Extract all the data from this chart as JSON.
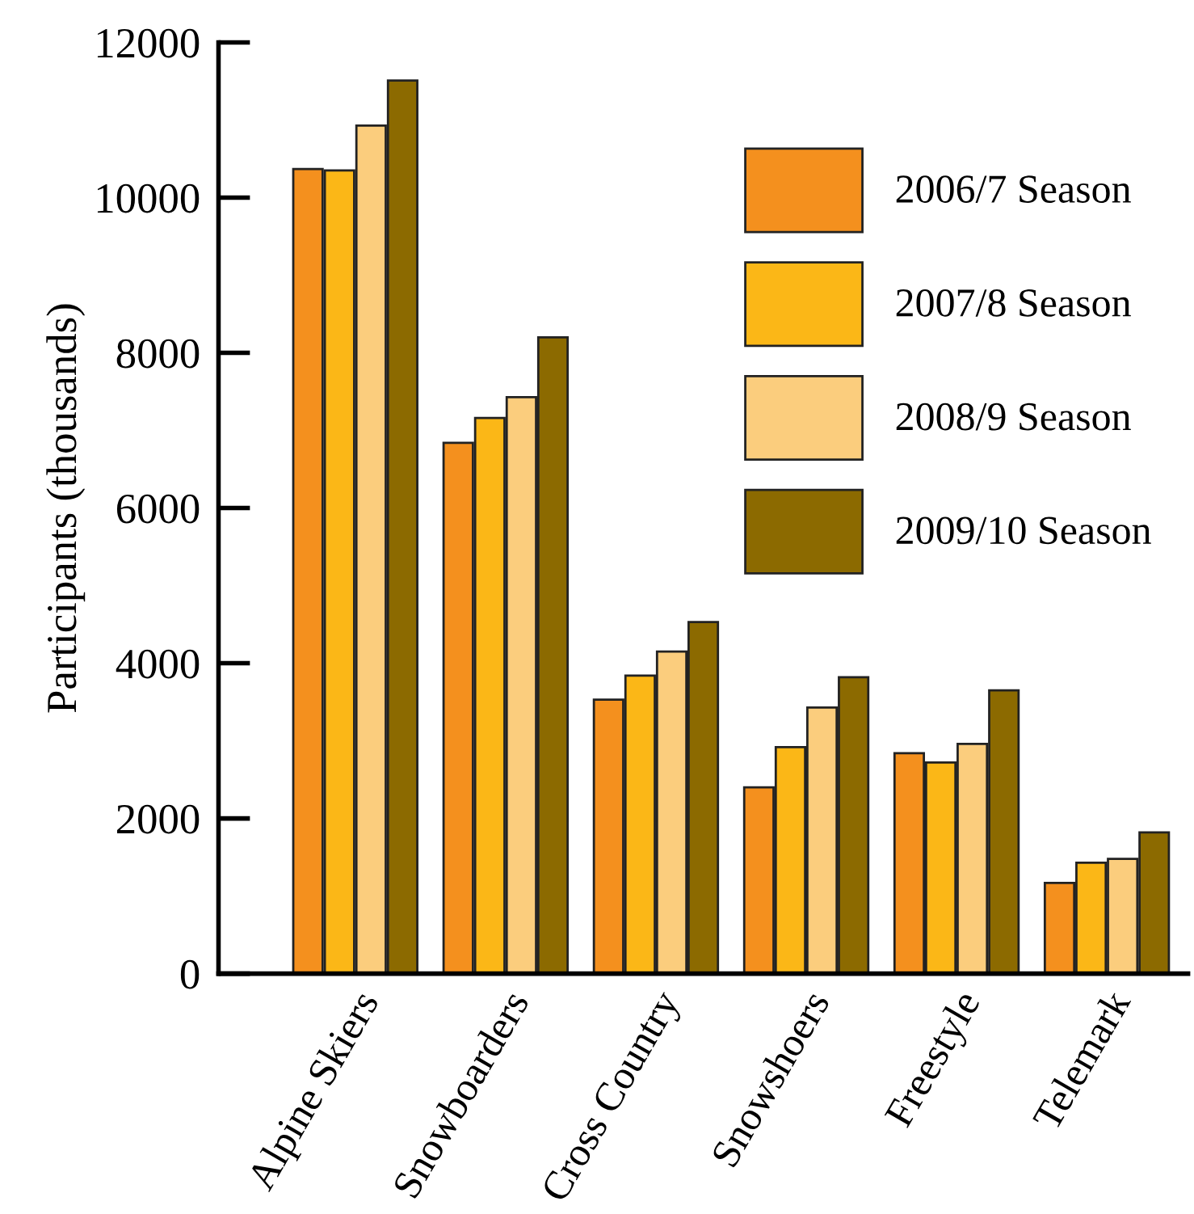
{
  "chart_data": {
    "type": "bar",
    "ylabel": "Participants (thousands)",
    "categories": [
      "Alpine Skiers",
      "Snowboarders",
      "Cross Country",
      "Snowshoers",
      "Freestyle",
      "Telemark"
    ],
    "series": [
      {
        "name": "2006/7 Season",
        "color": "#f4901e",
        "values": [
          10370,
          6840,
          3530,
          2400,
          2840,
          1170
        ]
      },
      {
        "name": "2007/8 Season",
        "color": "#fbb717",
        "values": [
          10350,
          7160,
          3840,
          2920,
          2720,
          1430
        ]
      },
      {
        "name": "2008/9 Season",
        "color": "#fbcd7d",
        "values": [
          10930,
          7430,
          4150,
          3430,
          2960,
          1480
        ]
      },
      {
        "name": "2009/10 Season",
        "color": "#8c6a00",
        "values": [
          11510,
          8200,
          4530,
          3820,
          3650,
          1820
        ]
      }
    ],
    "ylim": [
      0,
      12000
    ],
    "yticks": [
      0,
      2000,
      4000,
      6000,
      8000,
      10000,
      12000
    ],
    "grid": false,
    "legend": "top right"
  }
}
